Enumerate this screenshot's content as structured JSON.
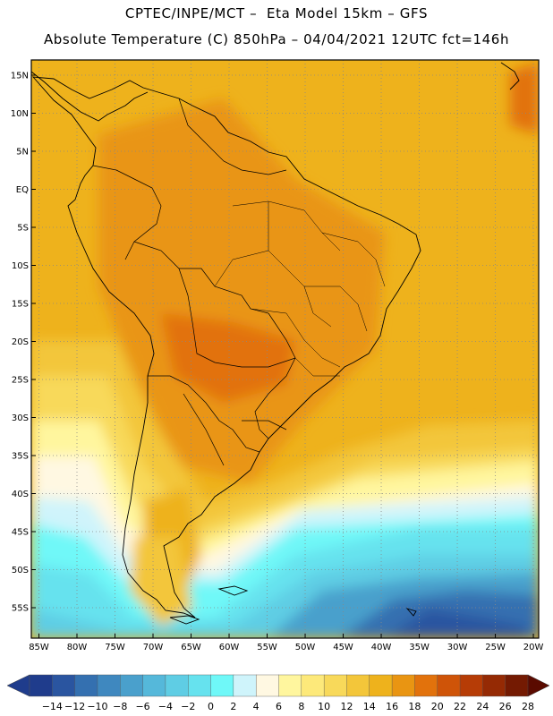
{
  "header": {
    "line1": "CPTEC/INPE/MCT –  Eta Model 15km – GFS",
    "line2": "Absolute Temperature (C) 850hPa – 04/04/2021 12UTC fct=146h"
  },
  "map": {
    "lat_labels": [
      "15N",
      "10N",
      "5N",
      "EQ",
      "5S",
      "10S",
      "15S",
      "20S",
      "25S",
      "30S",
      "35S",
      "40S",
      "45S",
      "50S",
      "55S"
    ],
    "lon_labels": [
      "85W",
      "80W",
      "75W",
      "70W",
      "65W",
      "60W",
      "55W",
      "50W",
      "45W",
      "40W",
      "35W",
      "30W",
      "25W",
      "20W"
    ]
  },
  "colorbar": {
    "labels": [
      "-14",
      "-12",
      "-10",
      "-8",
      "-6",
      "-4",
      "-2",
      "0",
      "2",
      "4",
      "6",
      "8",
      "10",
      "12",
      "14",
      "16",
      "18",
      "20",
      "22",
      "24",
      "26",
      "28"
    ],
    "colors": [
      "#1f3c8c",
      "#2a55a0",
      "#3470b0",
      "#3f88bf",
      "#4aa0cc",
      "#55b8da",
      "#5fcde4",
      "#66e2ee",
      "#6ff8f8",
      "#cff4fb",
      "#fff8e2",
      "#fff69e",
      "#fde97a",
      "#f8d95a",
      "#f3c63a",
      "#eeb21c",
      "#e99512",
      "#e2720c",
      "#cf5408",
      "#b63c06",
      "#952a04",
      "#741a02"
    ]
  }
}
